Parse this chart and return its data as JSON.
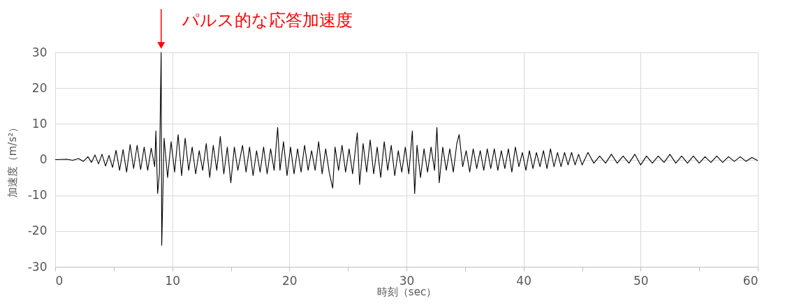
{
  "chart_data": {
    "type": "line",
    "xlabel": "時刻（sec）",
    "ylabel": "加速度（m/s²）",
    "annotations": [
      {
        "text": "パルス的な応答加速度",
        "x": 9.05,
        "y": 30
      }
    ],
    "xlim": [
      0,
      60
    ],
    "xticks": [
      0,
      {
        "value": 5,
        "label": null
      },
      10,
      {
        "value": 15,
        "label": null
      },
      20,
      {
        "value": 25,
        "label": null
      },
      30,
      {
        "value": 35,
        "label": null
      },
      40,
      {
        "value": 45,
        "label": null
      },
      50,
      {
        "value": 55,
        "label": null
      },
      60
    ],
    "ylim": [
      -30,
      30
    ],
    "yticks": [
      -30,
      -20,
      -10,
      0,
      10,
      20,
      30
    ],
    "grid": true,
    "legend": false,
    "marker": "none",
    "line_style": "solid",
    "series": [
      {
        "color": "#000000",
        "x": [
          0,
          1,
          1.5,
          2,
          2.4,
          2.8,
          3.1,
          3.4,
          3.7,
          4.0,
          4.3,
          4.6,
          4.9,
          5.2,
          5.5,
          5.8,
          6.1,
          6.4,
          6.7,
          7.0,
          7.3,
          7.6,
          7.9,
          8.2,
          8.5,
          8.6,
          8.75,
          8.9,
          9.05,
          9.1,
          9.3,
          9.6,
          9.9,
          10.2,
          10.5,
          10.8,
          11.1,
          11.4,
          11.7,
          12.0,
          12.3,
          12.6,
          12.9,
          13.2,
          13.5,
          13.8,
          14.1,
          14.4,
          14.7,
          15.0,
          15.3,
          15.6,
          16.0,
          16.3,
          16.6,
          16.9,
          17.2,
          17.5,
          17.8,
          18.1,
          18.4,
          18.7,
          19.0,
          19.2,
          19.5,
          19.8,
          20.1,
          20.4,
          20.7,
          21.0,
          21.3,
          21.6,
          21.9,
          22.2,
          22.5,
          22.8,
          23.1,
          23.4,
          23.7,
          23.9,
          24.2,
          24.5,
          24.8,
          25.1,
          25.4,
          25.8,
          26.0,
          26.3,
          26.6,
          26.9,
          27.2,
          27.5,
          27.8,
          28.1,
          28.4,
          28.7,
          29.0,
          29.3,
          29.6,
          29.9,
          30.2,
          30.5,
          30.7,
          30.9,
          31.2,
          31.5,
          31.8,
          32.1,
          32.4,
          32.6,
          32.8,
          33.1,
          33.4,
          33.7,
          34.0,
          34.3,
          34.5,
          34.8,
          35.1,
          35.4,
          35.7,
          36.0,
          36.3,
          36.6,
          36.9,
          37.2,
          37.5,
          37.8,
          38.1,
          38.4,
          38.7,
          39.0,
          39.3,
          39.6,
          39.9,
          40.2,
          40.5,
          40.8,
          41.1,
          41.4,
          41.7,
          42.0,
          42.3,
          42.6,
          42.9,
          43.2,
          43.5,
          43.8,
          44.1,
          44.4,
          44.7,
          45.0,
          45.5,
          46.0,
          46.5,
          47.0,
          47.5,
          48.0,
          48.5,
          49.0,
          49.5,
          50.0,
          50.5,
          51.0,
          51.5,
          52.0,
          52.5,
          53.0,
          53.5,
          54.0,
          54.5,
          55.0,
          55.5,
          56.0,
          56.5,
          57.0,
          57.5,
          58.0,
          58.5,
          59.0,
          59.5,
          60
        ],
        "values": [
          0,
          0.1,
          -0.2,
          0.3,
          -0.5,
          0.8,
          -0.8,
          1.3,
          -1.2,
          1.5,
          -1.8,
          1.2,
          -2.2,
          2.6,
          -3,
          2.8,
          -3.5,
          4.2,
          -2.5,
          4,
          -2.8,
          3.5,
          -3,
          3.2,
          -2,
          8,
          -9.5,
          -4,
          30,
          -24,
          6,
          -5,
          5,
          -3.5,
          7,
          -4.5,
          6,
          -3,
          3.5,
          -4,
          2.5,
          -3,
          4.5,
          -5,
          4,
          -3,
          6.5,
          -4,
          3.5,
          -6.5,
          3.5,
          -3,
          4,
          -3.5,
          3.5,
          -4.5,
          2.5,
          -3.5,
          3.5,
          -4,
          3,
          -3,
          9,
          -3,
          5,
          -4.5,
          3.5,
          -4,
          3,
          -3.5,
          4,
          -3,
          2.5,
          -3,
          5,
          -4,
          3,
          -3.5,
          -8,
          3.5,
          -3,
          4,
          -3.5,
          3,
          -4,
          7.5,
          -7,
          4.5,
          -3.5,
          5.5,
          -4,
          3.5,
          -5,
          5,
          -3,
          4,
          -4.5,
          2.5,
          -3.5,
          3.5,
          -4,
          8,
          -9.5,
          4,
          -5,
          3,
          -3.5,
          3.5,
          -3,
          9,
          -6.5,
          3.5,
          -3,
          3,
          -3.5,
          4.5,
          7,
          -2,
          2.5,
          -3.5,
          3,
          -2.5,
          2.5,
          -3,
          3,
          -2.5,
          3,
          -3,
          2.5,
          -2.5,
          3,
          -3.5,
          3.5,
          -2,
          2,
          -3,
          2.5,
          -2.5,
          2,
          -2,
          2.5,
          -2.5,
          3,
          -2,
          2,
          -2,
          2,
          -1.5,
          2,
          -1.5,
          1.5,
          -1.5,
          2,
          -1,
          1,
          -1,
          1.5,
          -1,
          1,
          -1,
          1.5,
          -1.5,
          1,
          -1,
          1,
          -0.8,
          1.5,
          -1,
          1,
          -1,
          1,
          -1,
          0.8,
          -0.8,
          1,
          -0.8,
          0.8,
          -0.5,
          0.8,
          -0.5,
          0.6,
          -0.3
        ]
      }
    ]
  }
}
